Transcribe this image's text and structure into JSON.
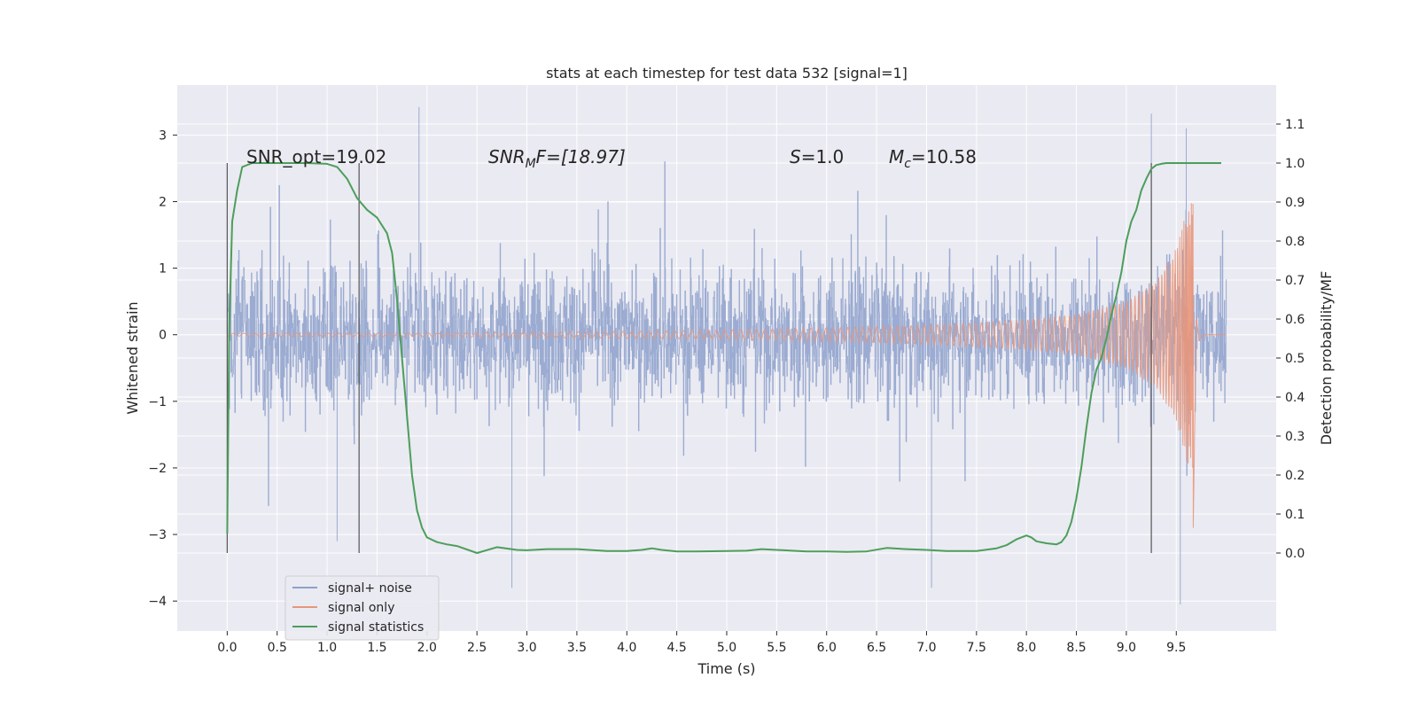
{
  "chart_data": {
    "type": "line",
    "title": "stats at each timestep for test data 532 [signal=1]",
    "xlabel": "Time (s)",
    "ylabel_left": "Whitened strain",
    "ylabel_right": "Detection probability/MF",
    "xlim": [
      -0.5,
      10.5
    ],
    "ylim_left": [
      -4.45,
      3.75
    ],
    "ylim_right": [
      -0.2,
      1.2
    ],
    "x_ticks": [
      "0.0",
      "0.5",
      "1.0",
      "1.5",
      "2.0",
      "2.5",
      "3.0",
      "3.5",
      "4.0",
      "4.5",
      "5.0",
      "5.5",
      "6.0",
      "6.5",
      "7.0",
      "7.5",
      "8.0",
      "8.5",
      "9.0",
      "9.5"
    ],
    "y_left_ticks": [
      "3",
      "2",
      "1",
      "0",
      "−1",
      "−2",
      "−3",
      "−4"
    ],
    "y_right_ticks": [
      "1.1",
      "1.0",
      "0.9",
      "0.8",
      "0.7",
      "0.6",
      "0.5",
      "0.4",
      "0.3",
      "0.2",
      "0.1",
      "0.0"
    ],
    "grid": true,
    "legend_position": "lower-left",
    "annotations": {
      "snr_opt": "SNR_opt=19.02",
      "snr_mf_prefix": "SNR",
      "snr_mf_sub": "M",
      "snr_mf_rest": "F=[18.97]",
      "s_prefix": "S",
      "s_rest": "=1.0",
      "mc_prefix": "M",
      "mc_sub": "c",
      "mc_rest": "=10.58"
    },
    "vertical_markers_x": [
      0.0,
      1.32,
      9.25
    ],
    "series": [
      {
        "name": "signal+ noise",
        "axis": "left",
        "color": "#8da0cb",
        "description": "whitened strain noise, approximately |y| <= 1.8 with spikes up to 3.4 and down to -4.1",
        "spikes": [
          [
            1.92,
            3.42
          ],
          [
            2.85,
            -3.8
          ],
          [
            7.05,
            -3.8
          ],
          [
            9.25,
            3.32
          ],
          [
            9.54,
            -4.05
          ],
          [
            9.6,
            3.1
          ],
          [
            1.1,
            -3.1
          ]
        ]
      },
      {
        "name": "signal only",
        "axis": "left",
        "color": "#e9967a",
        "description": "chirp signal growing toward merger at ~9.65 s",
        "envelope": [
          [
            0.0,
            0.02
          ],
          [
            2.0,
            0.03
          ],
          [
            4.0,
            0.05
          ],
          [
            5.0,
            0.07
          ],
          [
            6.0,
            0.1
          ],
          [
            7.0,
            0.14
          ],
          [
            8.0,
            0.22
          ],
          [
            8.5,
            0.3
          ],
          [
            9.0,
            0.5
          ],
          [
            9.3,
            0.8
          ],
          [
            9.5,
            1.3
          ],
          [
            9.6,
            1.9
          ],
          [
            9.65,
            2.0
          ]
        ],
        "merger_dip": [
          9.67,
          -2.9
        ]
      },
      {
        "name": "signal statistics",
        "axis": "right",
        "color": "#4c9e5a",
        "x": [
          0.0,
          0.02,
          0.05,
          0.1,
          0.15,
          0.25,
          0.4,
          0.6,
          0.8,
          1.0,
          1.1,
          1.2,
          1.3,
          1.4,
          1.5,
          1.6,
          1.65,
          1.7,
          1.75,
          1.8,
          1.85,
          1.9,
          1.95,
          2.0,
          2.1,
          2.2,
          2.3,
          2.5,
          2.7,
          2.9,
          3.0,
          3.2,
          3.5,
          3.8,
          4.0,
          4.15,
          4.25,
          4.35,
          4.5,
          4.7,
          5.0,
          5.2,
          5.35,
          5.5,
          5.8,
          6.0,
          6.2,
          6.4,
          6.6,
          6.8,
          7.0,
          7.2,
          7.5,
          7.7,
          7.8,
          7.9,
          8.0,
          8.05,
          8.1,
          8.2,
          8.3,
          8.35,
          8.4,
          8.45,
          8.5,
          8.55,
          8.6,
          8.65,
          8.7,
          8.75,
          8.8,
          8.85,
          8.9,
          8.95,
          9.0,
          9.05,
          9.1,
          9.15,
          9.2,
          9.25,
          9.3,
          9.35,
          9.4,
          9.45,
          9.5,
          9.6,
          9.75,
          9.95
        ],
        "y": [
          0.05,
          0.57,
          0.85,
          0.93,
          0.99,
          1.0,
          1.0,
          1.0,
          1.0,
          0.998,
          0.99,
          0.96,
          0.91,
          0.88,
          0.86,
          0.82,
          0.77,
          0.65,
          0.5,
          0.35,
          0.2,
          0.11,
          0.065,
          0.04,
          0.028,
          0.022,
          0.018,
          0.0,
          0.015,
          0.008,
          0.007,
          0.01,
          0.01,
          0.005,
          0.005,
          0.008,
          0.012,
          0.008,
          0.004,
          0.004,
          0.005,
          0.006,
          0.01,
          0.008,
          0.004,
          0.004,
          0.003,
          0.004,
          0.013,
          0.01,
          0.008,
          0.005,
          0.005,
          0.012,
          0.02,
          0.035,
          0.045,
          0.04,
          0.03,
          0.025,
          0.022,
          0.028,
          0.045,
          0.08,
          0.14,
          0.22,
          0.32,
          0.41,
          0.47,
          0.5,
          0.55,
          0.61,
          0.66,
          0.72,
          0.8,
          0.85,
          0.88,
          0.93,
          0.96,
          0.985,
          0.995,
          0.998,
          1.0,
          1.0,
          1.0,
          1.0,
          1.0,
          1.0
        ]
      }
    ]
  }
}
